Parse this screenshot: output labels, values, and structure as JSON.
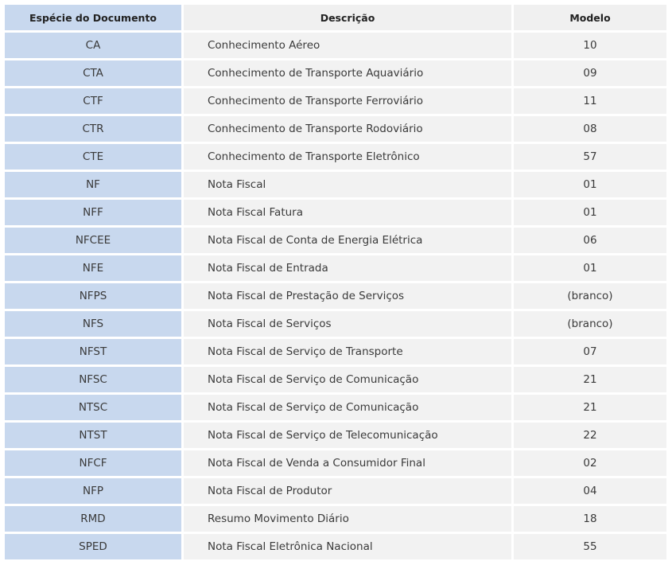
{
  "table": {
    "headers": {
      "code": "Espécie do Documento",
      "description": "Descrição",
      "model": "Modelo"
    },
    "rows": [
      {
        "code": "CA",
        "description": "Conhecimento Aéreo",
        "model": "10"
      },
      {
        "code": "CTA",
        "description": "Conhecimento de Transporte Aquaviário",
        "model": "09"
      },
      {
        "code": "CTF",
        "description": "Conhecimento de Transporte Ferroviário",
        "model": "11"
      },
      {
        "code": "CTR",
        "description": "Conhecimento de Transporte Rodoviário",
        "model": "08"
      },
      {
        "code": "CTE",
        "description": "Conhecimento de Transporte Eletrônico",
        "model": "57"
      },
      {
        "code": "NF",
        "description": "Nota Fiscal",
        "model": "01"
      },
      {
        "code": "NFF",
        "description": "Nota Fiscal Fatura",
        "model": "01"
      },
      {
        "code": "NFCEE",
        "description": "Nota Fiscal de Conta de Energia Elétrica",
        "model": "06"
      },
      {
        "code": "NFE",
        "description": "Nota Fiscal de Entrada",
        "model": "01"
      },
      {
        "code": "NFPS",
        "description": "Nota Fiscal de Prestação de Serviços",
        "model": "(branco)"
      },
      {
        "code": "NFS",
        "description": "Nota Fiscal de Serviços",
        "model": "(branco)"
      },
      {
        "code": "NFST",
        "description": "Nota Fiscal de Serviço de Transporte",
        "model": "07"
      },
      {
        "code": "NFSC",
        "description": "Nota Fiscal de Serviço de Comunicação",
        "model": "21"
      },
      {
        "code": "NTSC",
        "description": "Nota Fiscal de Serviço de Comunicação",
        "model": "21"
      },
      {
        "code": "NTST",
        "description": "Nota Fiscal de Serviço de Telecomunicação",
        "model": "22"
      },
      {
        "code": "NFCF",
        "description": "Nota Fiscal de Venda a Consumidor Final",
        "model": "02"
      },
      {
        "code": "NFP",
        "description": "Nota Fiscal de Produtor",
        "model": "04"
      },
      {
        "code": "RMD",
        "description": "Resumo Movimento Diário",
        "model": "18"
      },
      {
        "code": "SPED",
        "description": "Nota Fiscal Eletrônica Nacional",
        "model": "55"
      }
    ]
  }
}
